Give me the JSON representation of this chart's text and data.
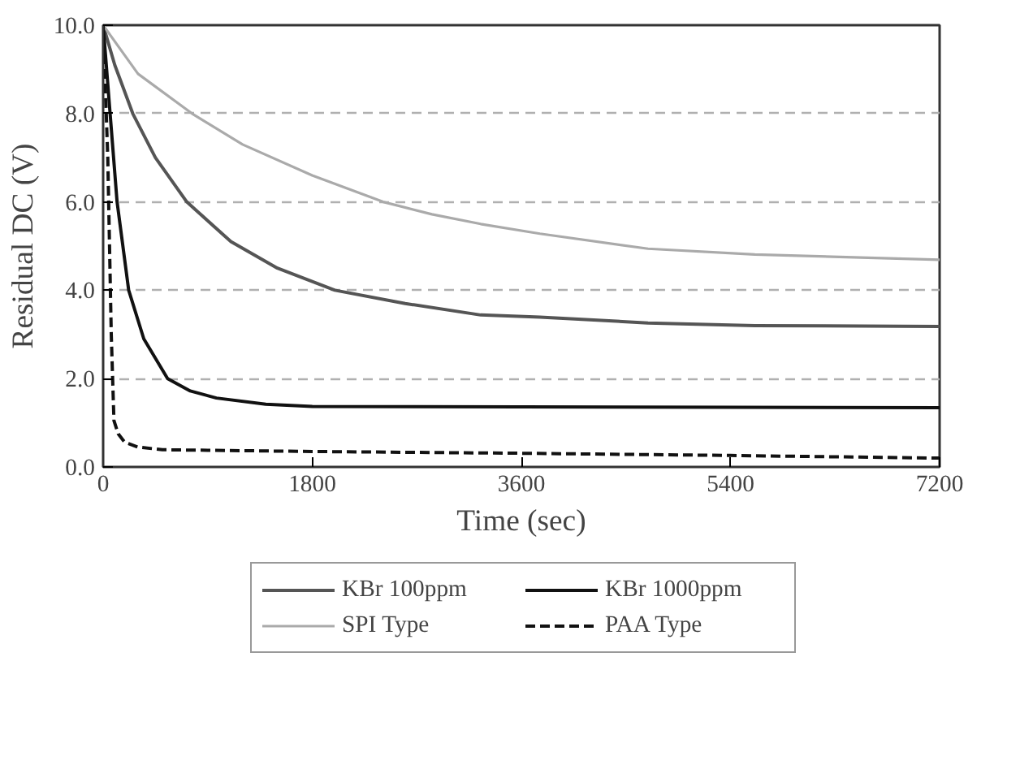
{
  "chart_data": {
    "type": "line",
    "xlabel": "Time (sec)",
    "ylabel": "Residual DC (V)",
    "xlim": [
      0,
      7200
    ],
    "xticks": [
      0,
      1800,
      3600,
      5400,
      7200
    ],
    "ylim": [
      0,
      10
    ],
    "yticks": [
      {
        "value": 0,
        "label": "0.0"
      },
      {
        "value": 2,
        "label": "2.0"
      },
      {
        "value": 4,
        "label": "4.0"
      },
      {
        "value": 6,
        "label": "6.0"
      },
      {
        "value": 8,
        "label": "8.0"
      },
      {
        "value": 10,
        "label": "10.0"
      }
    ],
    "grid": "y",
    "legend": "bottom",
    "marker": "none",
    "series": [
      {
        "name": "KBr 100ppm",
        "color": "#555555",
        "line_style": "solid",
        "x": [
          0,
          100,
          255,
          450,
          720,
          1100,
          1500,
          1995,
          2600,
          3250,
          3760,
          4690,
          5610,
          7200
        ],
        "values": [
          10,
          9.1,
          8.0,
          7.0,
          6.0,
          5.1,
          4.5,
          4.0,
          3.7,
          3.44,
          3.39,
          3.26,
          3.2,
          3.18
        ]
      },
      {
        "name": "KBr 1000ppm",
        "color": "#111111",
        "line_style": "solid",
        "x": [
          0,
          30,
          60,
          120,
          220,
          350,
          555,
          750,
          975,
          1400,
          1800,
          3600,
          5400,
          7200
        ],
        "values": [
          10,
          9.0,
          8.0,
          6.0,
          4.0,
          2.9,
          2.0,
          1.72,
          1.56,
          1.42,
          1.37,
          1.36,
          1.35,
          1.34
        ]
      },
      {
        "name": "SPI Type",
        "color": "#aaaaaa",
        "line_style": "solid",
        "x": [
          0,
          300,
          765,
          1200,
          1800,
          2410,
          2830,
          3250,
          3760,
          4690,
          5610,
          7200
        ],
        "values": [
          10,
          8.9,
          8.0,
          7.3,
          6.6,
          6.0,
          5.72,
          5.5,
          5.28,
          4.94,
          4.81,
          4.69
        ]
      },
      {
        "name": "PAA Type",
        "color": "#111111",
        "line_style": "dashed",
        "x": [
          0,
          40,
          70,
          93,
          130,
          185,
          300,
          510,
          1800,
          3600,
          5400,
          7200
        ],
        "values": [
          10,
          7.0,
          3.0,
          1.05,
          0.75,
          0.56,
          0.45,
          0.39,
          0.35,
          0.31,
          0.26,
          0.2
        ]
      }
    ]
  }
}
